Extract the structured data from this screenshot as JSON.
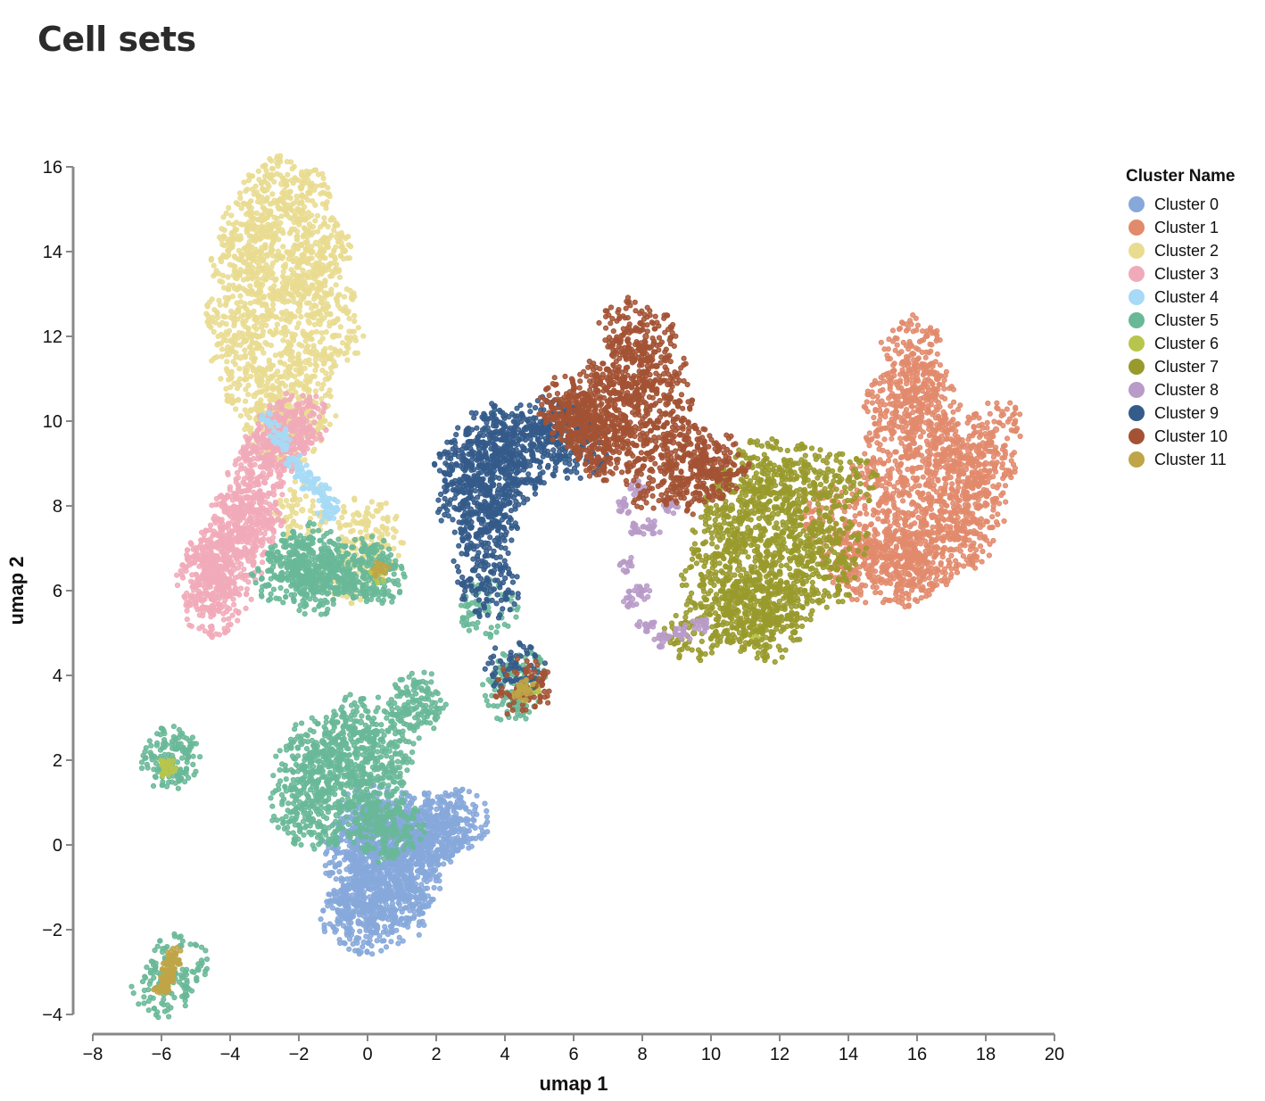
{
  "title": "Cell sets",
  "chart_data": {
    "type": "scatter",
    "xlabel": "umap 1",
    "ylabel": "umap 2",
    "xlim": [
      -8,
      20
    ],
    "ylim": [
      -4,
      16
    ],
    "x_ticks": [
      -8,
      -6,
      -4,
      -2,
      0,
      2,
      4,
      6,
      8,
      10,
      12,
      14,
      16,
      18,
      20
    ],
    "y_ticks": [
      -4,
      -2,
      0,
      2,
      4,
      6,
      8,
      10,
      12,
      14,
      16
    ],
    "x_tick_labels": [
      "−8",
      "−6",
      "−4",
      "−2",
      "0",
      "2",
      "4",
      "6",
      "8",
      "10",
      "12",
      "14",
      "16",
      "18",
      "20"
    ],
    "y_tick_labels": [
      "−4",
      "−2",
      "0",
      "2",
      "4",
      "6",
      "8",
      "10",
      "12",
      "14",
      "16"
    ],
    "grid": false,
    "legend": {
      "title": "Cluster Name",
      "placement": "top-right",
      "items": [
        {
          "label": "Cluster 0",
          "color": "#86a8da"
        },
        {
          "label": "Cluster 1",
          "color": "#e28a6c"
        },
        {
          "label": "Cluster 2",
          "color": "#e9dc91"
        },
        {
          "label": "Cluster 3",
          "color": "#f1aab9"
        },
        {
          "label": "Cluster 4",
          "color": "#a6daf6"
        },
        {
          "label": "Cluster 5",
          "color": "#69b898"
        },
        {
          "label": "Cluster 6",
          "color": "#b8c54d"
        },
        {
          "label": "Cluster 7",
          "color": "#999a2c"
        },
        {
          "label": "Cluster 8",
          "color": "#b89bc8"
        },
        {
          "label": "Cluster 9",
          "color": "#345b8a"
        },
        {
          "label": "Cluster 10",
          "color": "#a35234"
        },
        {
          "label": "Cluster 11",
          "color": "#bfa547"
        }
      ]
    },
    "series": [
      {
        "cluster": 0,
        "points": [
          [
            -0.5,
            -1.7
          ],
          [
            0.0,
            -1.9
          ],
          [
            0.8,
            -1.7
          ],
          [
            -0.4,
            -1.0
          ],
          [
            0.2,
            -1.2
          ],
          [
            1.0,
            -1.2
          ],
          [
            -0.5,
            -0.3
          ],
          [
            0.2,
            -0.4
          ],
          [
            0.9,
            -0.5
          ],
          [
            1.5,
            -0.4
          ],
          [
            -0.3,
            0.3
          ],
          [
            0.5,
            0.2
          ],
          [
            1.2,
            0.1
          ],
          [
            1.9,
            0.2
          ],
          [
            2.3,
            0.5
          ],
          [
            2.7,
            0.6
          ],
          [
            0.0,
            0.8
          ],
          [
            0.8,
            0.6
          ],
          [
            1.5,
            0.6
          ],
          [
            2.1,
            0.4
          ],
          [
            -0.2,
            -1.4
          ],
          [
            0.5,
            -0.9
          ],
          [
            1.3,
            -0.8
          ],
          [
            0.1,
            0.0
          ],
          [
            1.7,
            0.0
          ]
        ]
      },
      {
        "cluster": 1,
        "points": [
          [
            14.0,
            6.8
          ],
          [
            14.5,
            7.5
          ],
          [
            14.8,
            8.5
          ],
          [
            15.2,
            9.2
          ],
          [
            15.5,
            6.3
          ],
          [
            15.8,
            7.2
          ],
          [
            16.0,
            8.0
          ],
          [
            16.3,
            8.8
          ],
          [
            16.5,
            9.4
          ],
          [
            16.8,
            7.0
          ],
          [
            17.0,
            7.8
          ],
          [
            17.2,
            8.6
          ],
          [
            17.5,
            9.3
          ],
          [
            17.8,
            8.0
          ],
          [
            18.0,
            9.0
          ],
          [
            18.3,
            9.8
          ],
          [
            15.8,
            11.8
          ],
          [
            16.0,
            11.2
          ],
          [
            15.7,
            10.7
          ],
          [
            16.4,
            10.5
          ],
          [
            15.3,
            10.4
          ],
          [
            16.1,
            10.0
          ],
          [
            15.4,
            6.6
          ],
          [
            16.2,
            6.4
          ],
          [
            14.3,
            6.4
          ],
          [
            15.0,
            7.0
          ],
          [
            17.4,
            7.2
          ],
          [
            13.5,
            7.8
          ]
        ]
      },
      {
        "cluster": 2,
        "points": [
          [
            -2.5,
            15.6
          ],
          [
            -3.0,
            15.2
          ],
          [
            -1.9,
            15.3
          ],
          [
            -3.5,
            14.5
          ],
          [
            -2.5,
            14.5
          ],
          [
            -1.5,
            14.2
          ],
          [
            -3.8,
            13.5
          ],
          [
            -2.8,
            13.4
          ],
          [
            -1.7,
            13.5
          ],
          [
            -3.9,
            12.5
          ],
          [
            -3.0,
            12.4
          ],
          [
            -2.0,
            12.6
          ],
          [
            -1.2,
            13.0
          ],
          [
            -3.7,
            11.5
          ],
          [
            -2.8,
            11.3
          ],
          [
            -1.8,
            11.4
          ],
          [
            -3.3,
            10.6
          ],
          [
            -2.5,
            10.5
          ],
          [
            -1.7,
            10.3
          ],
          [
            -2.8,
            9.8
          ],
          [
            -2.2,
            9.7
          ],
          [
            -1.3,
            14.0
          ],
          [
            -3.4,
            14.0
          ],
          [
            -1.0,
            12.0
          ],
          [
            0.0,
            7.6
          ],
          [
            0.2,
            7.0
          ],
          [
            -1.9,
            7.9
          ],
          [
            -0.6,
            6.4
          ]
        ]
      },
      {
        "cluster": 3,
        "points": [
          [
            -4.5,
            5.6
          ],
          [
            -4.7,
            6.2
          ],
          [
            -4.2,
            6.0
          ],
          [
            -4.4,
            6.8
          ],
          [
            -3.9,
            6.5
          ],
          [
            -4.0,
            7.2
          ],
          [
            -3.6,
            7.4
          ],
          [
            -3.5,
            8.0
          ],
          [
            -3.3,
            8.5
          ],
          [
            -3.0,
            9.0
          ],
          [
            -2.8,
            9.4
          ],
          [
            -2.4,
            9.8
          ],
          [
            -2.0,
            10.0
          ],
          [
            -3.8,
            7.8
          ],
          [
            -4.6,
            6.5
          ],
          [
            -3.3,
            7.7
          ],
          [
            -2.6,
            9.6
          ]
        ]
      },
      {
        "cluster": 4,
        "points": [
          [
            -2.9,
            10.0
          ],
          [
            -2.5,
            9.5
          ],
          [
            -2.2,
            9.1
          ],
          [
            -1.9,
            8.8
          ],
          [
            -1.6,
            8.5
          ],
          [
            -1.3,
            8.3
          ],
          [
            -1.1,
            8.0
          ],
          [
            -1.2,
            7.8
          ],
          [
            -2.6,
            9.7
          ],
          [
            -1.8,
            8.6
          ]
        ]
      },
      {
        "cluster": 5,
        "points": [
          [
            -1.8,
            6.6
          ],
          [
            -1.4,
            6.3
          ],
          [
            -1.2,
            6.6
          ],
          [
            -1.6,
            6.9
          ],
          [
            -2.1,
            6.7
          ],
          [
            -1.5,
            6.1
          ],
          [
            -2.5,
            6.4
          ],
          [
            0.0,
            6.6
          ],
          [
            0.2,
            6.3
          ],
          [
            -0.1,
            6.4
          ],
          [
            -1.5,
            2.4
          ],
          [
            -1.9,
            1.8
          ],
          [
            -1.2,
            1.6
          ],
          [
            -0.8,
            2.0
          ],
          [
            -0.5,
            2.6
          ],
          [
            -0.2,
            2.9
          ],
          [
            -0.3,
            1.5
          ],
          [
            0.3,
            1.8
          ],
          [
            -2.0,
            0.9
          ],
          [
            -1.6,
            0.6
          ],
          [
            -0.9,
            0.7
          ],
          [
            0.3,
            1.0
          ],
          [
            0.5,
            2.2
          ],
          [
            1.5,
            3.4
          ],
          [
            1.3,
            3.2
          ],
          [
            -5.8,
            2.0
          ],
          [
            -5.7,
            2.1
          ],
          [
            3.5,
            5.6
          ],
          [
            4.2,
            3.6
          ],
          [
            4.4,
            3.9
          ],
          [
            -6.0,
            -3.4
          ],
          [
            -5.5,
            -2.8
          ],
          [
            0.8,
            0.4
          ],
          [
            0.4,
            0.3
          ]
        ]
      },
      {
        "cluster": 6,
        "points": [
          [
            -5.9,
            1.8
          ],
          [
            -5.8,
            1.9
          ],
          [
            0.3,
            6.4
          ],
          [
            4.8,
            3.7
          ],
          [
            11.3,
            5.0
          ]
        ]
      },
      {
        "cluster": 7,
        "points": [
          [
            10.2,
            7.3
          ],
          [
            10.6,
            8.0
          ],
          [
            11.0,
            8.5
          ],
          [
            11.5,
            8.9
          ],
          [
            10.8,
            6.5
          ],
          [
            11.3,
            7.2
          ],
          [
            11.8,
            7.8
          ],
          [
            12.2,
            8.4
          ],
          [
            11.0,
            5.6
          ],
          [
            11.5,
            6.0
          ],
          [
            12.0,
            6.4
          ],
          [
            12.5,
            7.0
          ],
          [
            13.0,
            7.6
          ],
          [
            11.2,
            5.2
          ],
          [
            11.8,
            5.0
          ],
          [
            12.3,
            5.8
          ],
          [
            13.3,
            6.3
          ],
          [
            13.7,
            7.2
          ],
          [
            14.0,
            8.6
          ],
          [
            9.5,
            5.0
          ],
          [
            10.5,
            5.5
          ],
          [
            12.8,
            8.8
          ],
          [
            10.0,
            6.2
          ]
        ]
      },
      {
        "cluster": 8,
        "points": [
          [
            7.5,
            8.0
          ],
          [
            7.8,
            7.4
          ],
          [
            7.6,
            6.6
          ],
          [
            7.7,
            5.8
          ],
          [
            8.1,
            5.2
          ],
          [
            8.6,
            4.8
          ],
          [
            9.2,
            5.0
          ],
          [
            8.3,
            7.5
          ],
          [
            8.0,
            6.0
          ],
          [
            7.9,
            8.4
          ],
          [
            8.8,
            8.0
          ],
          [
            9.7,
            5.2
          ]
        ]
      },
      {
        "cluster": 9,
        "points": [
          [
            2.8,
            9.0
          ],
          [
            3.2,
            9.5
          ],
          [
            3.6,
            9.7
          ],
          [
            4.0,
            9.4
          ],
          [
            3.0,
            8.5
          ],
          [
            3.5,
            8.3
          ],
          [
            4.1,
            8.6
          ],
          [
            3.7,
            7.9
          ],
          [
            3.4,
            7.4
          ],
          [
            3.3,
            6.6
          ],
          [
            3.6,
            6.0
          ],
          [
            4.5,
            9.6
          ],
          [
            5.0,
            9.9
          ],
          [
            5.6,
            9.8
          ],
          [
            4.8,
            9.2
          ],
          [
            6.2,
            9.3
          ],
          [
            4.3,
            4.2
          ],
          [
            2.9,
            8.0
          ]
        ]
      },
      {
        "cluster": 10,
        "points": [
          [
            5.8,
            10.4
          ],
          [
            6.3,
            10.1
          ],
          [
            6.7,
            10.7
          ],
          [
            6.5,
            9.6
          ],
          [
            7.3,
            11.2
          ],
          [
            7.6,
            12.2
          ],
          [
            8.1,
            12.0
          ],
          [
            7.1,
            10.4
          ],
          [
            7.8,
            10.9
          ],
          [
            8.4,
            11.3
          ],
          [
            8.7,
            10.4
          ],
          [
            8.0,
            9.9
          ],
          [
            8.9,
            9.5
          ],
          [
            9.4,
            9.2
          ],
          [
            9.9,
            8.8
          ],
          [
            7.4,
            9.4
          ],
          [
            6.9,
            9.3
          ],
          [
            8.3,
            8.6
          ],
          [
            9.3,
            8.5
          ],
          [
            10.3,
            9.0
          ],
          [
            6.0,
            10.0
          ],
          [
            4.5,
            3.7
          ]
        ]
      },
      {
        "cluster": 11,
        "points": [
          [
            -6.0,
            -3.4
          ],
          [
            -5.9,
            -3.2
          ],
          [
            -5.8,
            -3.0
          ],
          [
            -5.7,
            -2.8
          ],
          [
            -5.6,
            -2.6
          ],
          [
            -5.85,
            -3.1
          ],
          [
            4.5,
            3.6
          ],
          [
            4.6,
            3.7
          ],
          [
            0.4,
            6.5
          ]
        ]
      }
    ]
  }
}
